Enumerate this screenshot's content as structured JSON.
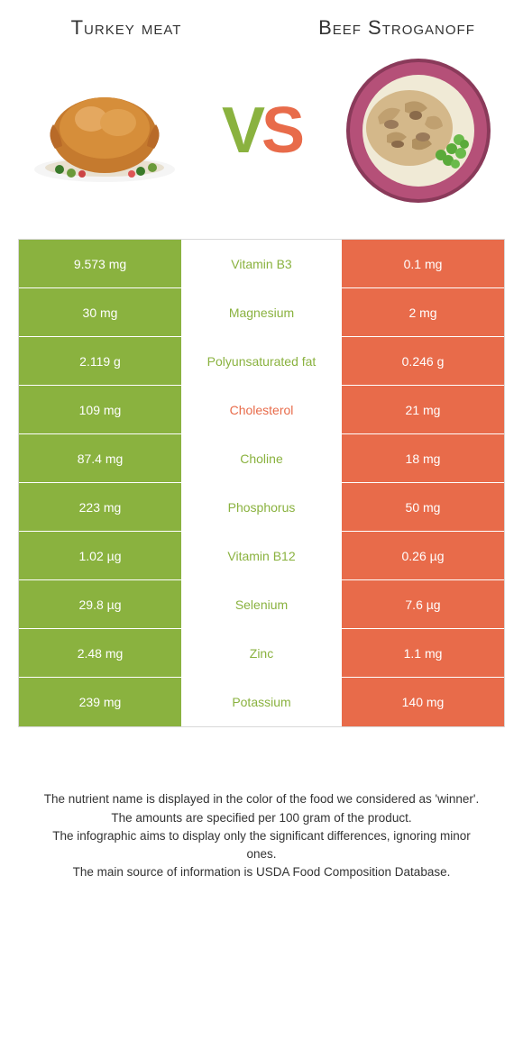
{
  "colors": {
    "left_bg": "#8ab23f",
    "right_bg": "#e86b4a",
    "winner_left": "#8ab23f",
    "winner_right": "#e86b4a",
    "cell_text": "#ffffff"
  },
  "titles": {
    "left": "Turkey meat",
    "right": "Beef Stroganoff"
  },
  "vs": {
    "v": "V",
    "s": "S"
  },
  "rows": [
    {
      "left": "9.573 mg",
      "label": "Vitamin B3",
      "right": "0.1 mg",
      "winner": "left"
    },
    {
      "left": "30 mg",
      "label": "Magnesium",
      "right": "2 mg",
      "winner": "left"
    },
    {
      "left": "2.119 g",
      "label": "Polyunsaturated fat",
      "right": "0.246 g",
      "winner": "left"
    },
    {
      "left": "109 mg",
      "label": "Cholesterol",
      "right": "21 mg",
      "winner": "right"
    },
    {
      "left": "87.4 mg",
      "label": "Choline",
      "right": "18 mg",
      "winner": "left"
    },
    {
      "left": "223 mg",
      "label": "Phosphorus",
      "right": "50 mg",
      "winner": "left"
    },
    {
      "left": "1.02 µg",
      "label": "Vitamin B12",
      "right": "0.26 µg",
      "winner": "left"
    },
    {
      "left": "29.8 µg",
      "label": "Selenium",
      "right": "7.6 µg",
      "winner": "left"
    },
    {
      "left": "2.48 mg",
      "label": "Zinc",
      "right": "1.1 mg",
      "winner": "left"
    },
    {
      "left": "239 mg",
      "label": "Potassium",
      "right": "140 mg",
      "winner": "left"
    }
  ],
  "footnotes": [
    "The nutrient name is displayed in the color of the food we considered as 'winner'.",
    "The amounts are specified per 100 gram of the product.",
    "The infographic aims to display only the significant differences, ignoring minor ones.",
    "The main source of information is USDA Food Composition Database."
  ]
}
